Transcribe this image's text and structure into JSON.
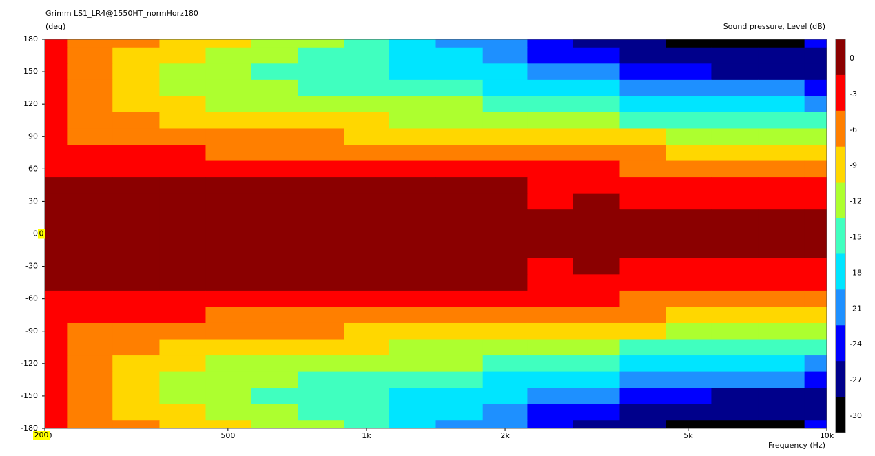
{
  "chart_data": {
    "type": "contour",
    "title": "Grimm LS1_LR4@1550HT_normHorz180",
    "y_label": "(deg)",
    "x_label": "Frequency  (Hz)",
    "z_label": "Sound pressure, Level  (dB)",
    "x_log": true,
    "xlim": [
      200,
      10000
    ],
    "ylim": [
      -180,
      180
    ],
    "xticks": [
      200,
      500,
      {
        "value": 1000,
        "label": "1k"
      },
      {
        "value": 2000,
        "label": "2k"
      },
      {
        "value": 5000,
        "label": "5k"
      },
      {
        "value": 10000,
        "label": "10k"
      }
    ],
    "yticks": [
      180,
      150,
      120,
      90,
      60,
      30,
      0,
      -30,
      -60,
      -90,
      -120,
      -150,
      -180
    ],
    "x": [
      200,
      250,
      315,
      400,
      500,
      630,
      800,
      1000,
      1250,
      1600,
      2000,
      2500,
      3150,
      4000,
      5000,
      6300,
      8000,
      10000
    ],
    "y": [
      180,
      165,
      150,
      135,
      120,
      105,
      90,
      75,
      60,
      45,
      30,
      15,
      0,
      -15,
      -30,
      -45,
      -60,
      -75,
      -90,
      -105,
      -120,
      -135,
      -150,
      -165,
      -180
    ],
    "z": [
      [
        -4,
        -6.5,
        -8.5,
        -10,
        -11,
        -12.5,
        -14,
        -16,
        -18,
        -21.5,
        -22,
        -25,
        -27,
        -29,
        -30,
        -31,
        -30,
        -26
      ],
      [
        -4.5,
        -7,
        -9,
        -11,
        -12,
        -14,
        -16,
        -17,
        -19,
        -20,
        -21,
        -24,
        -26,
        -28,
        -29,
        -29,
        -29,
        -28
      ],
      [
        -4.5,
        -7.5,
        -9.5,
        -12,
        -13,
        -15.5,
        -16,
        -17,
        -18.5,
        -19,
        -20,
        -22,
        -23,
        -25,
        -26,
        -27,
        -27,
        -27
      ],
      [
        -5,
        -8,
        -10,
        -12,
        -13,
        -14,
        -15,
        -15.5,
        -16,
        -17,
        -18,
        -19,
        -20,
        -21,
        -22,
        -23,
        -23.5,
        -24
      ],
      [
        -5,
        -8.5,
        -10,
        -11,
        -12,
        -12.5,
        -13,
        -13.5,
        -14,
        -14.5,
        -15,
        -16,
        -17,
        -18,
        -19,
        -19.5,
        -20,
        -21
      ],
      [
        -5,
        -7.5,
        -8.5,
        -9.5,
        -10,
        -10.5,
        -11,
        -11.5,
        -12,
        -12,
        -12.5,
        -13,
        -14,
        -15,
        -16,
        -16.5,
        -17,
        -17
      ],
      [
        -4.5,
        -6.5,
        -7,
        -7.5,
        -8,
        -8.5,
        -8.5,
        -9,
        -9,
        -9,
        -9.5,
        -10,
        -10.5,
        -11,
        -12,
        -12.5,
        -13,
        -14
      ],
      [
        -4,
        -5,
        -5.5,
        -5.5,
        -6,
        -6,
        -6,
        -6.5,
        -6.5,
        -6.5,
        -6.5,
        -7,
        -7.5,
        -8,
        -9,
        -9.5,
        -10,
        -10
      ],
      [
        -3.5,
        -3.5,
        -4,
        -4,
        -4,
        -4,
        -4,
        -4,
        -4,
        -4,
        -4,
        -5,
        -5.5,
        -6,
        -7,
        -8,
        -7.5,
        -7.5
      ],
      [
        -2,
        -2,
        -2,
        -2,
        -2,
        -2,
        -2,
        -2.5,
        -2.5,
        -2.5,
        -2.5,
        -4,
        -4,
        -4.5,
        -5,
        -5.5,
        -5.5,
        -5.5
      ],
      [
        -1,
        -1,
        -1,
        -1,
        -1,
        -1,
        -1,
        -1,
        -1,
        -1,
        -1,
        -3.5,
        -2.5,
        -3.5,
        -3.5,
        -4,
        -4,
        -3
      ],
      [
        0,
        0,
        0,
        0,
        0,
        0,
        0,
        0,
        0,
        0,
        0,
        -1,
        -1,
        -1.5,
        -1.5,
        -1.5,
        -1.5,
        -1
      ],
      [
        0,
        0,
        0,
        0,
        0,
        0,
        0,
        0,
        0,
        0,
        0,
        0,
        0,
        0,
        0,
        0,
        0,
        0
      ],
      [
        0,
        0,
        0,
        0,
        0,
        0,
        0,
        0,
        0,
        0,
        0,
        -1,
        -1,
        -1.5,
        -1.5,
        -1.5,
        -1.5,
        -1
      ],
      [
        -1,
        -1,
        -1,
        -1,
        -1,
        -1,
        -1,
        -1,
        -1,
        -1,
        -1,
        -3.5,
        -2.5,
        -3.5,
        -3.5,
        -4,
        -4,
        -3
      ],
      [
        -2,
        -2,
        -2,
        -2,
        -2,
        -2,
        -2,
        -2.5,
        -2.5,
        -2.5,
        -2.5,
        -4,
        -4,
        -4.5,
        -5,
        -5.5,
        -5.5,
        -5.5
      ],
      [
        -3.5,
        -3.5,
        -4,
        -4,
        -4,
        -4,
        -4,
        -4,
        -4,
        -4,
        -4,
        -5,
        -5.5,
        -6,
        -7,
        -8,
        -7.5,
        -7.5
      ],
      [
        -4,
        -5,
        -5.5,
        -5.5,
        -6,
        -6,
        -6,
        -6.5,
        -6.5,
        -6.5,
        -6.5,
        -7,
        -7.5,
        -8,
        -9,
        -9.5,
        -10,
        -10
      ],
      [
        -4.5,
        -6.5,
        -7,
        -7.5,
        -8,
        -8.5,
        -8.5,
        -9,
        -9,
        -9,
        -9.5,
        -10,
        -10.5,
        -11,
        -12,
        -12.5,
        -13,
        -14
      ],
      [
        -5,
        -7.5,
        -8.5,
        -9.5,
        -10,
        -10.5,
        -11,
        -11.5,
        -12,
        -12,
        -12.5,
        -13,
        -14,
        -15,
        -16,
        -16.5,
        -17,
        -17
      ],
      [
        -5,
        -8.5,
        -10,
        -11,
        -12,
        -12.5,
        -13,
        -13.5,
        -14,
        -14.5,
        -15,
        -16,
        -17,
        -18,
        -19,
        -19.5,
        -20,
        -21
      ],
      [
        -5,
        -8,
        -10,
        -12,
        -13,
        -14,
        -15,
        -15.5,
        -16,
        -17,
        -18,
        -19,
        -20,
        -21,
        -22,
        -23,
        -23.5,
        -24
      ],
      [
        -4.5,
        -7.5,
        -9.5,
        -12,
        -13,
        -15.5,
        -16,
        -17,
        -18.5,
        -19,
        -20,
        -22,
        -23,
        -25,
        -26,
        -27,
        -27,
        -27
      ],
      [
        -4.5,
        -7,
        -9,
        -11,
        -12,
        -14,
        -16,
        -17,
        -19,
        -20,
        -21,
        -24,
        -26,
        -28,
        -29,
        -29,
        -29,
        -28
      ],
      [
        -4,
        -6.5,
        -8.5,
        -10,
        -11,
        -12.5,
        -14,
        -16,
        -18,
        -21.5,
        -22,
        -25,
        -27,
        -29,
        -30,
        -31,
        -30,
        -26
      ]
    ],
    "levels": [
      0,
      -3,
      -6,
      -9,
      -12,
      -15,
      -18,
      -21,
      -24,
      -27,
      -30
    ],
    "colors": [
      "#8b0000",
      "#ff0000",
      "#ff7f00",
      "#ffd700",
      "#adff2f",
      "#40ffbf",
      "#00e5ff",
      "#1e90ff",
      "#0000ff",
      "#00008b",
      "#000000"
    ],
    "cursor": {
      "x": 200,
      "y": 0
    }
  }
}
